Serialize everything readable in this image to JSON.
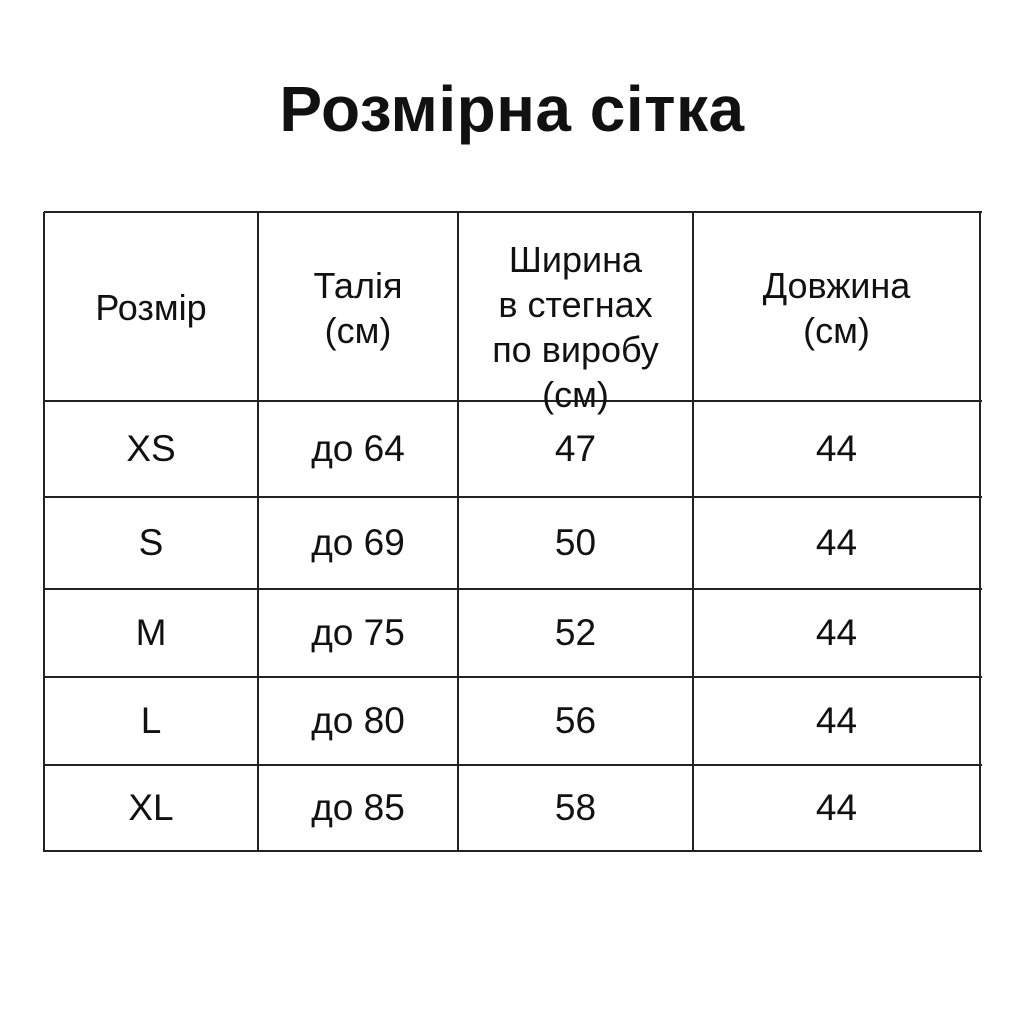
{
  "title": "Розмірна сітка",
  "table": {
    "headers": [
      [
        "Розмір"
      ],
      [
        "Талія",
        "(см)"
      ],
      [
        "Ширина",
        "в стегнах",
        "по виробу",
        "(см)"
      ],
      [
        "Довжина",
        "(см)"
      ]
    ],
    "rows": [
      [
        "XS",
        "до 64",
        "47",
        "44"
      ],
      [
        "S",
        "до 69",
        "50",
        "44"
      ],
      [
        "M",
        "до 75",
        "52",
        "44"
      ],
      [
        "L",
        "до 80",
        "56",
        "44"
      ],
      [
        "XL",
        "до 85",
        "58",
        "44"
      ]
    ]
  }
}
